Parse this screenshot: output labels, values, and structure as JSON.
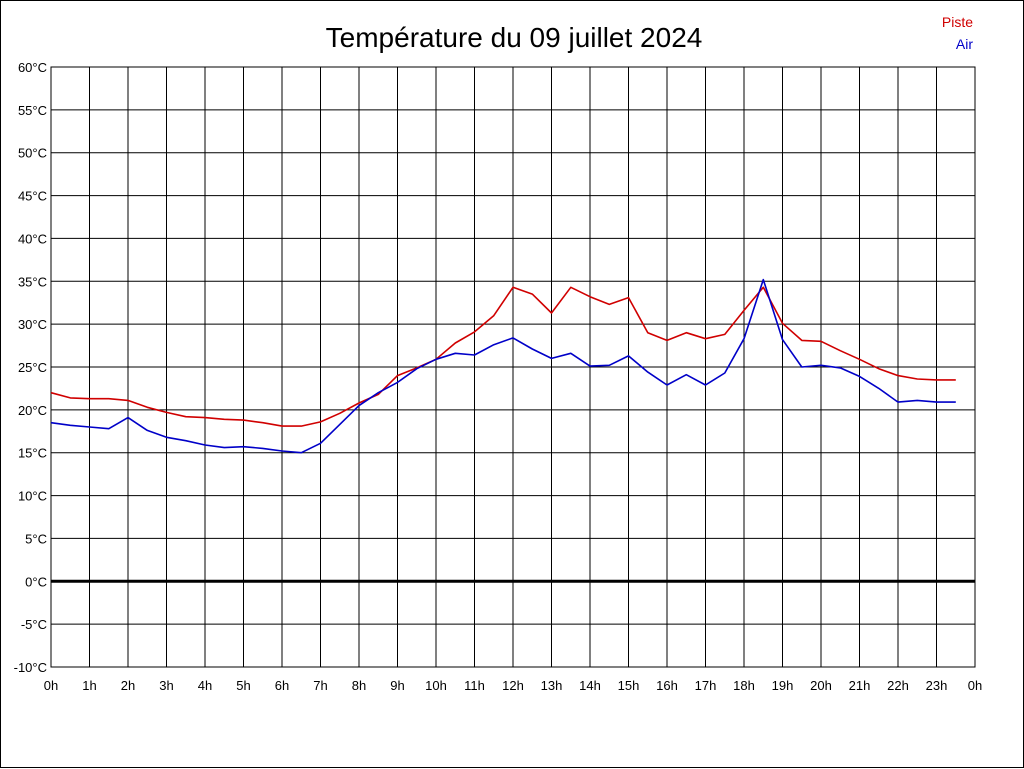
{
  "chart_data": {
    "type": "line",
    "title": "Température du 09 juillet 2024",
    "xlabel": "",
    "ylabel": "",
    "x_ticks": [
      "0h",
      "1h",
      "2h",
      "3h",
      "4h",
      "5h",
      "6h",
      "7h",
      "8h",
      "9h",
      "10h",
      "11h",
      "12h",
      "13h",
      "14h",
      "15h",
      "16h",
      "17h",
      "18h",
      "19h",
      "20h",
      "21h",
      "22h",
      "23h",
      "0h"
    ],
    "y_ticks": [
      "60°C",
      "55°C",
      "50°C",
      "45°C",
      "40°C",
      "35°C",
      "30°C",
      "25°C",
      "20°C",
      "15°C",
      "10°C",
      "5°C",
      "0°C",
      "-5°C",
      "-10°C"
    ],
    "xlim": [
      0,
      24
    ],
    "ylim": [
      -10,
      60
    ],
    "grid": true,
    "legend_position": "top-right",
    "colors": {
      "piste": "#d00000",
      "air": "#0000c8",
      "grid": "#000000"
    },
    "x": [
      0,
      0.5,
      1,
      1.5,
      2,
      2.5,
      3,
      3.5,
      4,
      4.5,
      5,
      5.5,
      6,
      6.5,
      7,
      7.5,
      8,
      8.5,
      9,
      9.5,
      10,
      10.5,
      11,
      11.5,
      12,
      12.5,
      13,
      13.5,
      14,
      14.5,
      15,
      15.5,
      16,
      16.5,
      17,
      17.5,
      18,
      18.5,
      19,
      19.5,
      20,
      20.5,
      21,
      21.5,
      22,
      22.5,
      23,
      23.5
    ],
    "series": [
      {
        "name": "Piste",
        "color": "#d00000",
        "values": [
          22.0,
          21.4,
          21.3,
          21.3,
          21.1,
          20.3,
          19.7,
          19.2,
          19.1,
          18.9,
          18.8,
          18.5,
          18.1,
          18.1,
          18.6,
          19.6,
          20.8,
          21.8,
          24.0,
          24.9,
          25.9,
          27.8,
          29.1,
          31.0,
          34.3,
          33.5,
          31.3,
          34.3,
          33.2,
          32.3,
          33.1,
          29.0,
          28.1,
          29.0,
          28.3,
          28.8,
          31.6,
          34.3,
          30.1,
          28.1,
          28.0,
          26.9,
          25.9,
          24.8,
          24.0,
          23.6,
          23.5,
          23.5
        ]
      },
      {
        "name": "Air",
        "color": "#0000c8",
        "values": [
          18.5,
          18.2,
          18.0,
          17.8,
          19.1,
          17.6,
          16.8,
          16.4,
          15.9,
          15.6,
          15.7,
          15.5,
          15.2,
          15.0,
          16.1,
          18.3,
          20.5,
          22.0,
          23.2,
          24.8,
          25.9,
          26.6,
          26.4,
          27.6,
          28.4,
          27.1,
          26.0,
          26.6,
          25.1,
          25.2,
          26.3,
          24.4,
          22.9,
          24.1,
          22.9,
          24.3,
          28.3,
          35.2,
          28.2,
          25.0,
          25.2,
          24.9,
          23.9,
          22.5,
          20.9,
          21.1,
          20.9,
          20.9
        ]
      }
    ],
    "zero_line": true
  }
}
